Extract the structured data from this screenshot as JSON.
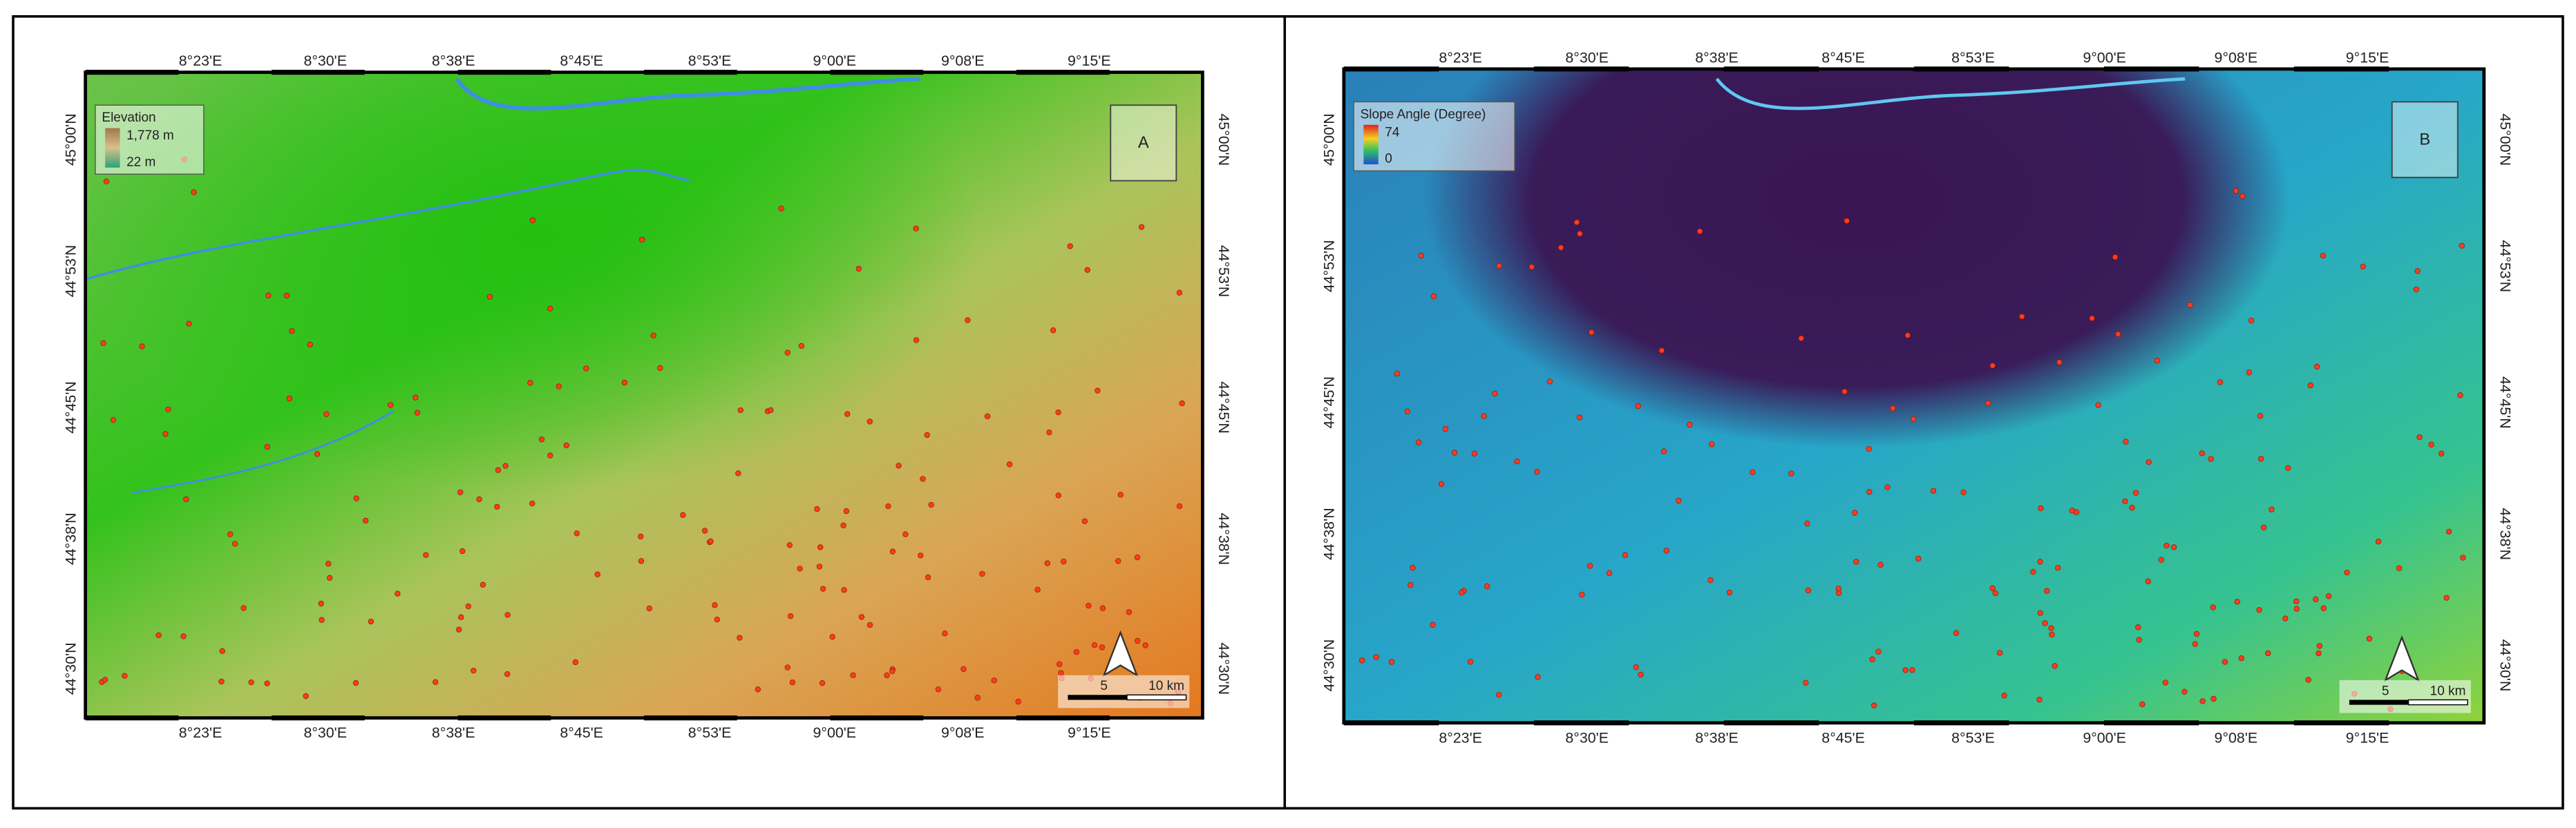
{
  "panels": [
    {
      "label": "A",
      "legend": {
        "title": "Elevation",
        "max": "1,778 m",
        "min": "22 m"
      },
      "lon_labels": [
        "8°23'E",
        "8°30'E",
        "8°38'E",
        "8°45'E",
        "8°53'E",
        "9°00'E",
        "9°08'E",
        "9°15'E"
      ],
      "lat_labels": [
        "45°00'N",
        "44°53'N",
        "44°45'N",
        "44°38'N",
        "44°30'N"
      ],
      "scale": [
        "5",
        "10 km"
      ]
    },
    {
      "label": "B",
      "legend": {
        "title": "Slope Angle (Degree)",
        "max": "74",
        "min": "0"
      },
      "lon_labels": [
        "8°23'E",
        "8°30'E",
        "8°38'E",
        "8°45'E",
        "8°53'E",
        "9°00'E",
        "9°08'E",
        "9°15'E"
      ],
      "lat_labels": [
        "45°00'N",
        "44°53'N",
        "44°45'N",
        "44°38'N",
        "44°30'N"
      ],
      "scale": [
        "5",
        "10 km"
      ]
    }
  ]
}
